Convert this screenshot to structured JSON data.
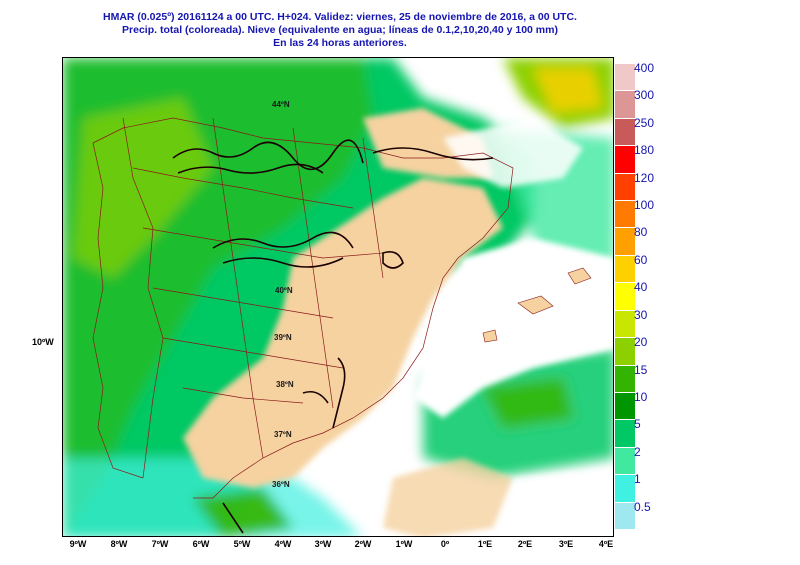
{
  "header": {
    "line1": "HMAR (0.025º) 20161124 a 00 UTC.  H+024. Validez: viernes, 25 de noviembre de 2016,  a  00 UTC.",
    "line2": "Precip. total (coloreada). Nieve (equivalente en agua; líneas de 0.1,2,10,20,40 y 100 mm)",
    "line3": "En las 24 horas anteriores."
  },
  "axis": {
    "lon_labels": [
      "9ºW",
      "8ºW",
      "7ºW",
      "6ºW",
      "5ºW",
      "4ºW",
      "3ºW",
      "2ºW",
      "1ºW",
      "0º",
      "1ºE",
      "2ºE",
      "3ºE",
      "4ºE"
    ],
    "lat_label_left": "10ºW",
    "grid_labels": [
      "44ºN",
      "40ºN",
      "39ºN",
      "38ºN",
      "37ºN",
      "36ºN"
    ]
  },
  "legend": {
    "levels": [
      "400",
      "300",
      "250",
      "180",
      "120",
      "100",
      "80",
      "60",
      "40",
      "30",
      "20",
      "15",
      "10",
      "5",
      "2",
      "1",
      "0.5"
    ],
    "colors": [
      "#f0c8c8",
      "#dc9696",
      "#c85a5a",
      "#ff0000",
      "#ff4000",
      "#ff7a00",
      "#ffa000",
      "#ffd000",
      "#ffff00",
      "#c8e600",
      "#8cd000",
      "#32b400",
      "#009600",
      "#00c864",
      "#40e8a0",
      "#40f0e0",
      "#a0e8f0"
    ]
  },
  "map_colors": {
    "land": "#f5d2a0",
    "sea": "#ffffff"
  }
}
